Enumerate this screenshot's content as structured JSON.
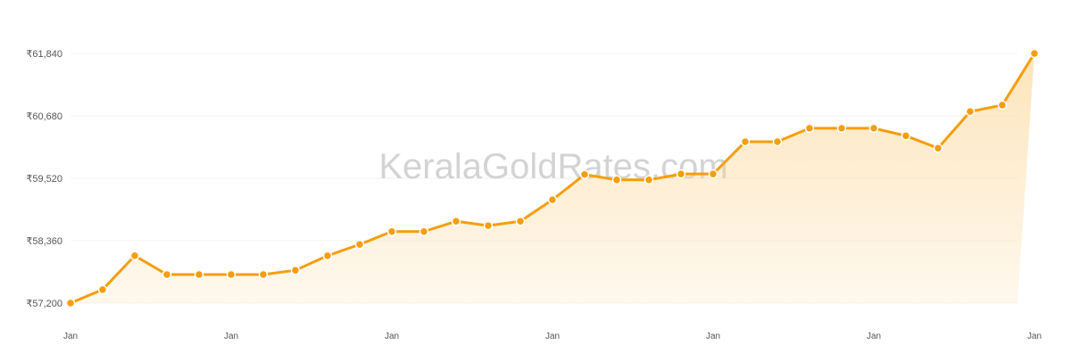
{
  "watermark": "KeralaGoldRates.com",
  "chart_data": {
    "type": "area",
    "title": "",
    "xlabel": "",
    "ylabel": "",
    "ylim": [
      57200,
      61840
    ],
    "yticks": [
      57200,
      58360,
      59520,
      60680,
      61840
    ],
    "ytick_labels": [
      "₹57,200",
      "₹58,360",
      "₹59,520",
      "₹60,680",
      "₹61,840"
    ],
    "xtick_labels": [
      "Jan",
      "Jan",
      "Jan",
      "Jan",
      "Jan",
      "Jan",
      "Jan"
    ],
    "xtick_every": 5,
    "grid": true,
    "line_color": "#f59e0b",
    "fill_color": "#fbd38d",
    "values": [
      57200,
      57450,
      58080,
      57730,
      57730,
      57730,
      57730,
      57810,
      58080,
      58290,
      58530,
      58530,
      58720,
      58640,
      58720,
      59120,
      59590,
      59490,
      59490,
      59600,
      59600,
      60200,
      60200,
      60450,
      60450,
      60450,
      60310,
      60080,
      60760,
      60880,
      61840
    ]
  }
}
